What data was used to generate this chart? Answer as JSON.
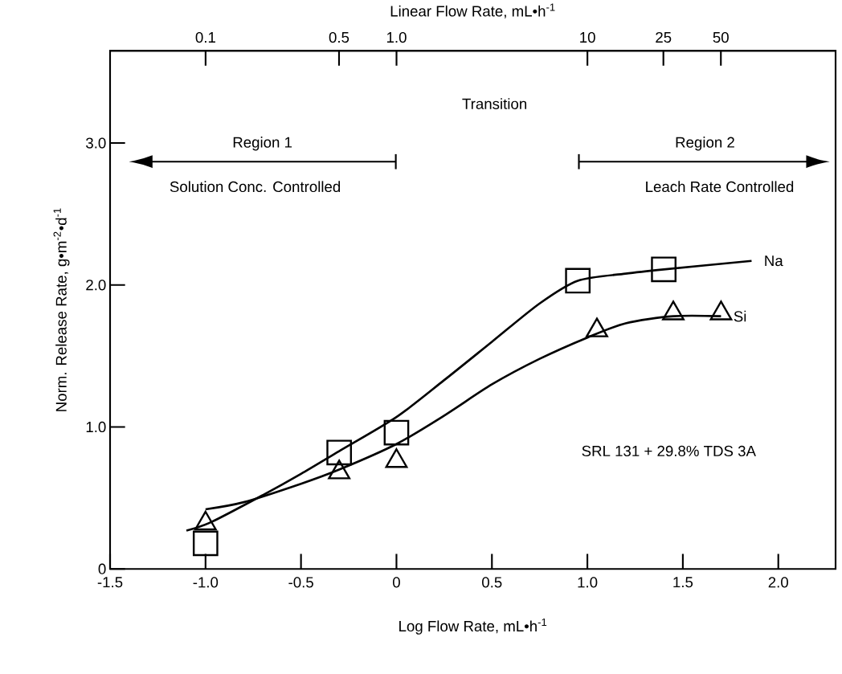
{
  "chart_data": {
    "type": "line",
    "xlabel": "Log Flow Rate, mL•h$^{-1}$",
    "ylabel": "Norm. Release Rate, g•m$^{-2}$•d$^{-1}$",
    "x2label": "Linear Flow Rate, mL•h$^{-1}$",
    "xlim": [
      -1.5,
      2.3
    ],
    "ylim": [
      0,
      3.65
    ],
    "xticks": [
      {
        "value": -1.5,
        "label": "-1.5"
      },
      {
        "value": -1.0,
        "label": "-1.0"
      },
      {
        "value": -0.5,
        "label": "-0.5"
      },
      0,
      0.5,
      {
        "value": 1.0,
        "label": "1.0"
      },
      1.5,
      {
        "value": 2.0,
        "label": "2.0"
      }
    ],
    "yticks": [
      0,
      {
        "value": 1.0,
        "label": "1.0"
      },
      {
        "value": 2.0,
        "label": "2.0"
      },
      {
        "value": 3.0,
        "label": "3.0"
      }
    ],
    "x2lim": [
      0.0316,
      199.5
    ],
    "log": "x2",
    "x2ticks": [
      0.1,
      0.5,
      {
        "value": 1,
        "label": "1.0"
      },
      10,
      25,
      50
    ],
    "series": [
      {
        "name": "Na",
        "color": "#000000",
        "x": [
          -1.1,
          -0.97,
          -0.7,
          -0.5,
          -0.3,
          0,
          0.25,
          0.5,
          0.75,
          0.95,
          1.2,
          1.4,
          1.86
        ],
        "values": [
          0.27,
          0.33,
          0.52,
          0.67,
          0.83,
          1.07,
          1.33,
          1.6,
          1.87,
          2.03,
          2.08,
          2.11,
          2.17
        ]
      },
      {
        "name": "Si",
        "color": "#000000",
        "x": [
          -1.0,
          -0.8,
          -0.5,
          -0.3,
          0,
          0.25,
          0.5,
          0.75,
          1.0,
          1.2,
          1.45,
          1.7
        ],
        "values": [
          0.42,
          0.47,
          0.6,
          0.7,
          0.88,
          1.08,
          1.3,
          1.48,
          1.63,
          1.73,
          1.78,
          1.78
        ]
      },
      {
        "type": "scatter",
        "marker": "square",
        "color": "#000000",
        "x": [
          -1.0,
          -0.3,
          0,
          0.95,
          1.4
        ],
        "values": [
          0.18,
          0.82,
          0.96,
          2.03,
          2.11
        ]
      },
      {
        "type": "scatter",
        "marker": "triangle",
        "color": "#000000",
        "x": [
          -1.0,
          -0.3,
          0,
          1.05,
          1.45,
          1.7
        ],
        "values": [
          0.32,
          0.68,
          0.76,
          1.68,
          1.8,
          1.8
        ]
      }
    ],
    "annotations": [
      "Transition",
      "Region 1",
      "Solution Conc. Controlled",
      "Region 2",
      "Leach Rate Controlled",
      "SRL 131 + 29.8% TDS 3A"
    ]
  }
}
